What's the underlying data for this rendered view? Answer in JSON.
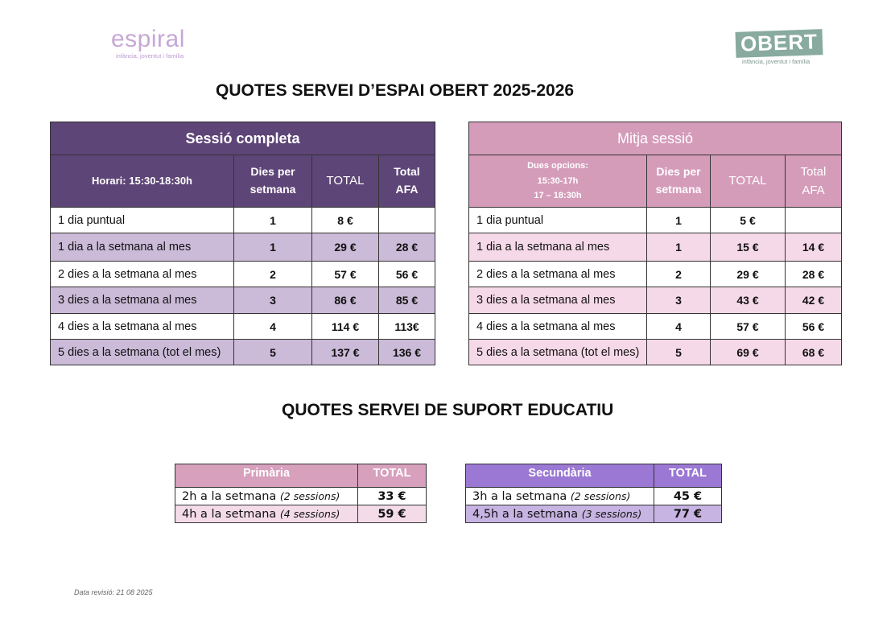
{
  "logos": {
    "espiral": {
      "name": "espiral",
      "tagline": "infància, joventut i família"
    },
    "obert": {
      "name": "OBERT",
      "tagline": "infància, joventut i família"
    }
  },
  "title_espai": "QUOTES SERVEI D’ESPAI OBERT 2025-2026",
  "title_suport": "QUOTES SERVEI DE SUPORT EDUCATIU",
  "table_full": {
    "caption": "Sessió completa",
    "col_horari": "Horari: 15:30-18:30h",
    "col_dies_1": "Dies per",
    "col_dies_2": "setmana",
    "col_total": "TOTAL",
    "col_afa_1": "Total",
    "col_afa_2": "AFA",
    "rows": [
      {
        "label": "1 dia puntual",
        "dies": "1",
        "total": "8 €",
        "afa": ""
      },
      {
        "label": "1 dia a la setmana al mes",
        "dies": "1",
        "total": "29 €",
        "afa": "28 €"
      },
      {
        "label": "2 dies a la setmana al mes",
        "dies": "2",
        "total": "57 €",
        "afa": "56 €"
      },
      {
        "label": "3 dies a la setmana al mes",
        "dies": "3",
        "total": "86 €",
        "afa": "85 €"
      },
      {
        "label": "4 dies a la setmana al mes",
        "dies": "4",
        "total": "114 €",
        "afa": "113€"
      },
      {
        "label": "5 dies a la setmana (tot el mes)",
        "dies": "5",
        "total": "137 €",
        "afa": "136 €"
      }
    ]
  },
  "table_half": {
    "caption": "Mitja sessió",
    "col_horari_1": "Dues opcions:",
    "col_horari_2": "15:30-17h",
    "col_horari_3": "17 – 18:30h",
    "col_dies_1": "Dies per",
    "col_dies_2": "setmana",
    "col_total": "TOTAL",
    "col_afa_1": "Total",
    "col_afa_2": "AFA",
    "rows": [
      {
        "label": "1 dia puntual",
        "dies": "1",
        "total": "5 €",
        "afa": ""
      },
      {
        "label": "1 dia a la setmana al mes",
        "dies": "1",
        "total": "15 €",
        "afa": "14 €"
      },
      {
        "label": "2 dies a la setmana al mes",
        "dies": "2",
        "total": "29 €",
        "afa": "28 €"
      },
      {
        "label": "3 dies a la setmana al mes",
        "dies": "3",
        "total": "43 €",
        "afa": "42 €"
      },
      {
        "label": "4 dies a la setmana al mes",
        "dies": "4",
        "total": "57 €",
        "afa": "56 €"
      },
      {
        "label": "5 dies a la setmana (tot el mes)",
        "dies": "5",
        "total": "69 €",
        "afa": "68 €"
      }
    ]
  },
  "primaria": {
    "head": "Primària",
    "total_head": "TOTAL",
    "rows": [
      {
        "label": "2h a la setmana",
        "note": "(2 sessions)",
        "total": "33 €"
      },
      {
        "label": "4h a la setmana",
        "note": "(4 sessions)",
        "total": "59 €"
      }
    ]
  },
  "secundaria": {
    "head": "Secundària",
    "total_head": "TOTAL",
    "rows": [
      {
        "label": "3h a la setmana",
        "note": "(2 sessions)",
        "total": "45 €"
      },
      {
        "label": "4,5h a la setmana",
        "note": "(3 sessions)",
        "total": "77 €"
      }
    ]
  },
  "footer": "Data revisió: 21 08 2025",
  "colors": {
    "dark_purple": "#5e4577",
    "pink": "#d59cba",
    "lilac": "#cbbad8",
    "light_pink": "#f6d9e8",
    "violet": "#9b78d3"
  }
}
